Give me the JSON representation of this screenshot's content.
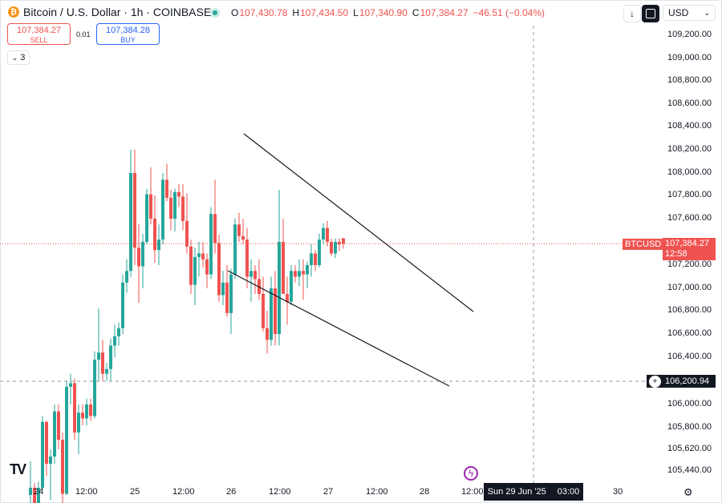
{
  "header": {
    "symbol": "Bitcoin / U.S. Dollar · 1h · COINBASE",
    "ohlc": [
      {
        "key": "O",
        "value": "107,430.78"
      },
      {
        "key": "H",
        "value": "107,434.50"
      },
      {
        "key": "L",
        "value": "107,340.90"
      },
      {
        "key": "C",
        "value": "107,384.27"
      },
      {
        "key": "",
        "value": "−46.51 (−0.04%)"
      }
    ],
    "currency": "USD",
    "down_arrow": "↓",
    "collapse_count": "3"
  },
  "trade": {
    "sell_price": "107,384.27",
    "sell_label": "SELL",
    "spread": "0.01",
    "buy_price": "107,384.28",
    "buy_label": "BUY"
  },
  "price_axis": [
    "109,200.00",
    "109,000.00",
    "108,800.00",
    "108,600.00",
    "108,400.00",
    "108,200.00",
    "108,000.00",
    "107,800.00",
    "107,600.00",
    "107,200.00",
    "107,000.00",
    "106,800.00",
    "106,600.00",
    "106,400.00",
    "106,000.00",
    "105,800.00",
    "105,620.00",
    "105,440.00"
  ],
  "time_axis": [
    "24",
    "12:00",
    "25",
    "12:00",
    "26",
    "12:00",
    "27",
    "12:00",
    "28",
    "12:00",
    "30"
  ],
  "tags": {
    "symbol_tag": "BTCUSD",
    "last_price": "107,384.27",
    "countdown": "12:58",
    "crosshair_price": "106,200.94",
    "crosshair_date": "Sun 29 Jun '25",
    "crosshair_time": "03:00"
  },
  "colors": {
    "up": "#26a69a",
    "down": "#ef5350",
    "accent": "#2962ff"
  },
  "chart_data": {
    "type": "candlestick",
    "series": [
      {
        "name": "",
        "ohlc": [
          [
            105240,
            105520,
            105160,
            105300
          ],
          [
            105300,
            105340,
            105020,
            105050
          ],
          [
            105050,
            105350,
            104900,
            105300
          ],
          [
            105300,
            105900,
            105280,
            105850
          ],
          [
            105850,
            105860,
            105400,
            105500
          ],
          [
            105500,
            105620,
            105200,
            105560
          ],
          [
            105560,
            106000,
            105500,
            105940
          ],
          [
            105940,
            106000,
            105620,
            105700
          ],
          [
            105700,
            105760,
            105160,
            105250
          ],
          [
            105250,
            106200,
            105240,
            106150
          ],
          [
            106150,
            106260,
            106000,
            106180
          ],
          [
            106180,
            106220,
            105700,
            105760
          ],
          [
            105760,
            106000,
            105580,
            105930
          ],
          [
            105930,
            106000,
            105820,
            105880
          ],
          [
            105880,
            106050,
            105820,
            106000
          ],
          [
            106000,
            106050,
            105860,
            105900
          ],
          [
            105900,
            106450,
            105880,
            106380
          ],
          [
            106380,
            106820,
            106200,
            106440
          ],
          [
            106440,
            106550,
            106200,
            106260
          ],
          [
            106260,
            106350,
            106200,
            106300
          ],
          [
            106300,
            106560,
            106200,
            106500
          ],
          [
            106500,
            106680,
            106400,
            106580
          ],
          [
            106580,
            106700,
            106500,
            106650
          ],
          [
            106650,
            107120,
            106600,
            107050
          ],
          [
            107050,
            107250,
            106960,
            107150
          ],
          [
            107150,
            108200,
            107100,
            108000
          ],
          [
            108000,
            108200,
            107200,
            107350
          ],
          [
            107350,
            107550,
            106870,
            107190
          ],
          [
            107190,
            107470,
            107000,
            107400
          ],
          [
            107400,
            107860,
            107380,
            107810
          ],
          [
            107810,
            108050,
            107550,
            107600
          ],
          [
            107600,
            107800,
            107220,
            107330
          ],
          [
            107330,
            107550,
            107200,
            107420
          ],
          [
            107420,
            108000,
            107380,
            107940
          ],
          [
            107940,
            108080,
            107750,
            107780
          ],
          [
            107780,
            107850,
            107500,
            107600
          ],
          [
            107600,
            107860,
            107490,
            107830
          ],
          [
            107830,
            107900,
            107700,
            107790
          ],
          [
            107790,
            107900,
            107500,
            107580
          ],
          [
            107580,
            107820,
            107300,
            107360
          ],
          [
            107360,
            107420,
            106950,
            107030
          ],
          [
            107030,
            107350,
            106850,
            107270
          ],
          [
            107270,
            107400,
            107100,
            107300
          ],
          [
            107300,
            107400,
            107180,
            107250
          ],
          [
            107250,
            107300,
            107000,
            107120
          ],
          [
            107120,
            107700,
            107080,
            107640
          ],
          [
            107640,
            107940,
            107300,
            107390
          ],
          [
            107390,
            107460,
            106880,
            106940
          ],
          [
            106940,
            107150,
            106850,
            107050
          ],
          [
            107050,
            107200,
            106750,
            106780
          ],
          [
            106780,
            107170,
            106600,
            107120
          ],
          [
            107120,
            107600,
            107080,
            107550
          ],
          [
            107550,
            107650,
            107400,
            107450
          ],
          [
            107450,
            107600,
            107380,
            107420
          ],
          [
            107420,
            107520,
            107000,
            107100
          ],
          [
            107100,
            107250,
            106880,
            107150
          ],
          [
            107150,
            107200,
            106950,
            107080
          ],
          [
            107080,
            107250,
            106900,
            106950
          ],
          [
            106950,
            107100,
            106620,
            106650
          ],
          [
            106650,
            106800,
            106430,
            106550
          ],
          [
            106550,
            107100,
            106500,
            107000
          ],
          [
            107000,
            107150,
            106500,
            106600
          ],
          [
            106600,
            107850,
            106500,
            107400
          ],
          [
            107400,
            107600,
            106950,
            106950
          ],
          [
            106950,
            107100,
            106680,
            106880
          ],
          [
            106880,
            107200,
            106850,
            107150
          ],
          [
            107150,
            107200,
            107050,
            107100
          ],
          [
            107100,
            107250,
            107020,
            107150
          ],
          [
            107150,
            107250,
            106900,
            107120
          ],
          [
            107120,
            107230,
            107000,
            107200
          ],
          [
            107200,
            107380,
            107100,
            107300
          ],
          [
            107300,
            107330,
            107150,
            107200
          ],
          [
            107200,
            107470,
            107180,
            107420
          ],
          [
            107420,
            107560,
            107380,
            107520
          ],
          [
            107520,
            107580,
            107360,
            107400
          ],
          [
            107400,
            107430,
            107280,
            107300
          ],
          [
            107300,
            107430,
            107260,
            107400
          ],
          [
            107400,
            107430,
            107320,
            107380
          ],
          [
            107430,
            107435,
            107341,
            107384
          ]
        ]
      }
    ],
    "x_labels": [
      "24",
      "12:00",
      "25",
      "12:00",
      "26",
      "12:00",
      "27",
      "12:00",
      "28",
      "12:00",
      "30"
    ],
    "ylim": [
      105360,
      109280
    ],
    "trendlines": [
      {
        "from": [
          "26 00:00",
          108330
        ],
        "to": [
          "28 12:00",
          106810
        ]
      },
      {
        "from": [
          "25 22:00",
          107150
        ],
        "to": [
          "28 16:00",
          106160
        ]
      }
    ]
  }
}
